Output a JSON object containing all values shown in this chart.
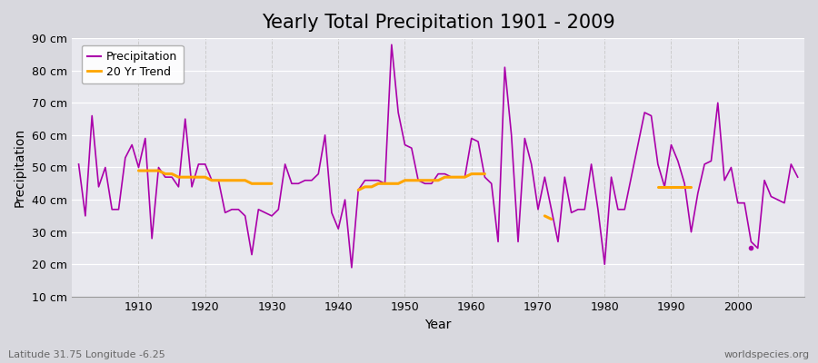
{
  "title": "Yearly Total Precipitation 1901 - 2009",
  "xlabel": "Year",
  "ylabel": "Precipitation",
  "subtitle_left": "Latitude 31.75 Longitude -6.25",
  "subtitle_right": "worldspecies.org",
  "years": [
    1901,
    1902,
    1903,
    1904,
    1905,
    1906,
    1907,
    1908,
    1909,
    1910,
    1911,
    1912,
    1913,
    1914,
    1915,
    1916,
    1917,
    1918,
    1919,
    1920,
    1921,
    1922,
    1923,
    1924,
    1925,
    1926,
    1927,
    1928,
    1929,
    1930,
    1931,
    1932,
    1933,
    1934,
    1935,
    1936,
    1937,
    1938,
    1939,
    1940,
    1941,
    1942,
    1943,
    1944,
    1945,
    1946,
    1947,
    1948,
    1949,
    1950,
    1951,
    1952,
    1953,
    1954,
    1955,
    1956,
    1957,
    1958,
    1959,
    1960,
    1961,
    1962,
    1963,
    1964,
    1965,
    1966,
    1967,
    1968,
    1969,
    1970,
    1971,
    1972,
    1973,
    1974,
    1975,
    1976,
    1977,
    1978,
    1979,
    1980,
    1981,
    1982,
    1983,
    1984,
    1985,
    1986,
    1987,
    1988,
    1989,
    1990,
    1991,
    1992,
    1993,
    1994,
    1995,
    1996,
    1997,
    1998,
    1999,
    2000,
    2001,
    2002,
    2003,
    2004,
    2005,
    2006,
    2007,
    2008,
    2009
  ],
  "precip": [
    51,
    35,
    66,
    44,
    50,
    37,
    37,
    53,
    57,
    50,
    59,
    28,
    50,
    47,
    47,
    44,
    65,
    44,
    51,
    51,
    46,
    46,
    36,
    37,
    37,
    35,
    23,
    37,
    36,
    35,
    37,
    51,
    45,
    45,
    46,
    46,
    48,
    60,
    36,
    31,
    40,
    19,
    43,
    46,
    46,
    46,
    45,
    88,
    67,
    57,
    56,
    46,
    45,
    45,
    48,
    48,
    47,
    47,
    47,
    59,
    58,
    47,
    45,
    27,
    81,
    60,
    27,
    59,
    51,
    37,
    47,
    37,
    27,
    47,
    36,
    37,
    37,
    51,
    37,
    20,
    47,
    37,
    37,
    47,
    57,
    67,
    66,
    51,
    44,
    57,
    52,
    45,
    30,
    42,
    51,
    52,
    70,
    46,
    50,
    39,
    39,
    27,
    25,
    46,
    41,
    40,
    39,
    51,
    47
  ],
  "trend_seg1_years": [
    1910,
    1911,
    1912,
    1913,
    1914,
    1915,
    1916,
    1917,
    1918,
    1919,
    1920,
    1921,
    1922,
    1923,
    1924,
    1925,
    1926,
    1927,
    1928,
    1929,
    1930
  ],
  "trend_seg1_vals": [
    49,
    49,
    49,
    49,
    48,
    48,
    47,
    47,
    47,
    47,
    47,
    46,
    46,
    46,
    46,
    46,
    46,
    45,
    45,
    45,
    45
  ],
  "trend_seg2_years": [
    1943,
    1944,
    1945,
    1946,
    1947,
    1948,
    1949,
    1950,
    1951,
    1952,
    1953,
    1954,
    1955,
    1956,
    1957,
    1958,
    1959,
    1960,
    1961,
    1962
  ],
  "trend_seg2_vals": [
    43,
    44,
    44,
    45,
    45,
    45,
    45,
    46,
    46,
    46,
    46,
    46,
    46,
    47,
    47,
    47,
    47,
    48,
    48,
    48
  ],
  "trend_seg3_years": [
    1971,
    1972
  ],
  "trend_seg3_vals": [
    35,
    34
  ],
  "trend_seg4_years": [
    1988,
    1989,
    1990,
    1991,
    1992,
    1993
  ],
  "trend_seg4_vals": [
    44,
    44,
    44,
    44,
    44,
    44
  ],
  "isolated_dot_year": 2002,
  "isolated_dot_val": 25,
  "fig_bg_color": "#d8d8de",
  "plot_bg_color": "#e8e8ee",
  "precip_color": "#aa00aa",
  "trend_color": "#ffa500",
  "ylim": [
    10,
    90
  ],
  "yticks": [
    10,
    20,
    30,
    40,
    50,
    60,
    70,
    80,
    90
  ],
  "ytick_labels": [
    "10 cm",
    "20 cm",
    "30 cm",
    "40 cm",
    "50 cm",
    "60 cm",
    "70 cm",
    "80 cm",
    "90 cm"
  ],
  "xtick_start": 1910,
  "xtick_end": 2010,
  "xtick_step": 10,
  "hgrid_color": "#ffffff",
  "vgrid_color": "#cccccc",
  "title_fontsize": 15,
  "axis_label_fontsize": 10,
  "tick_fontsize": 9,
  "legend_fontsize": 9,
  "footer_fontsize": 8
}
